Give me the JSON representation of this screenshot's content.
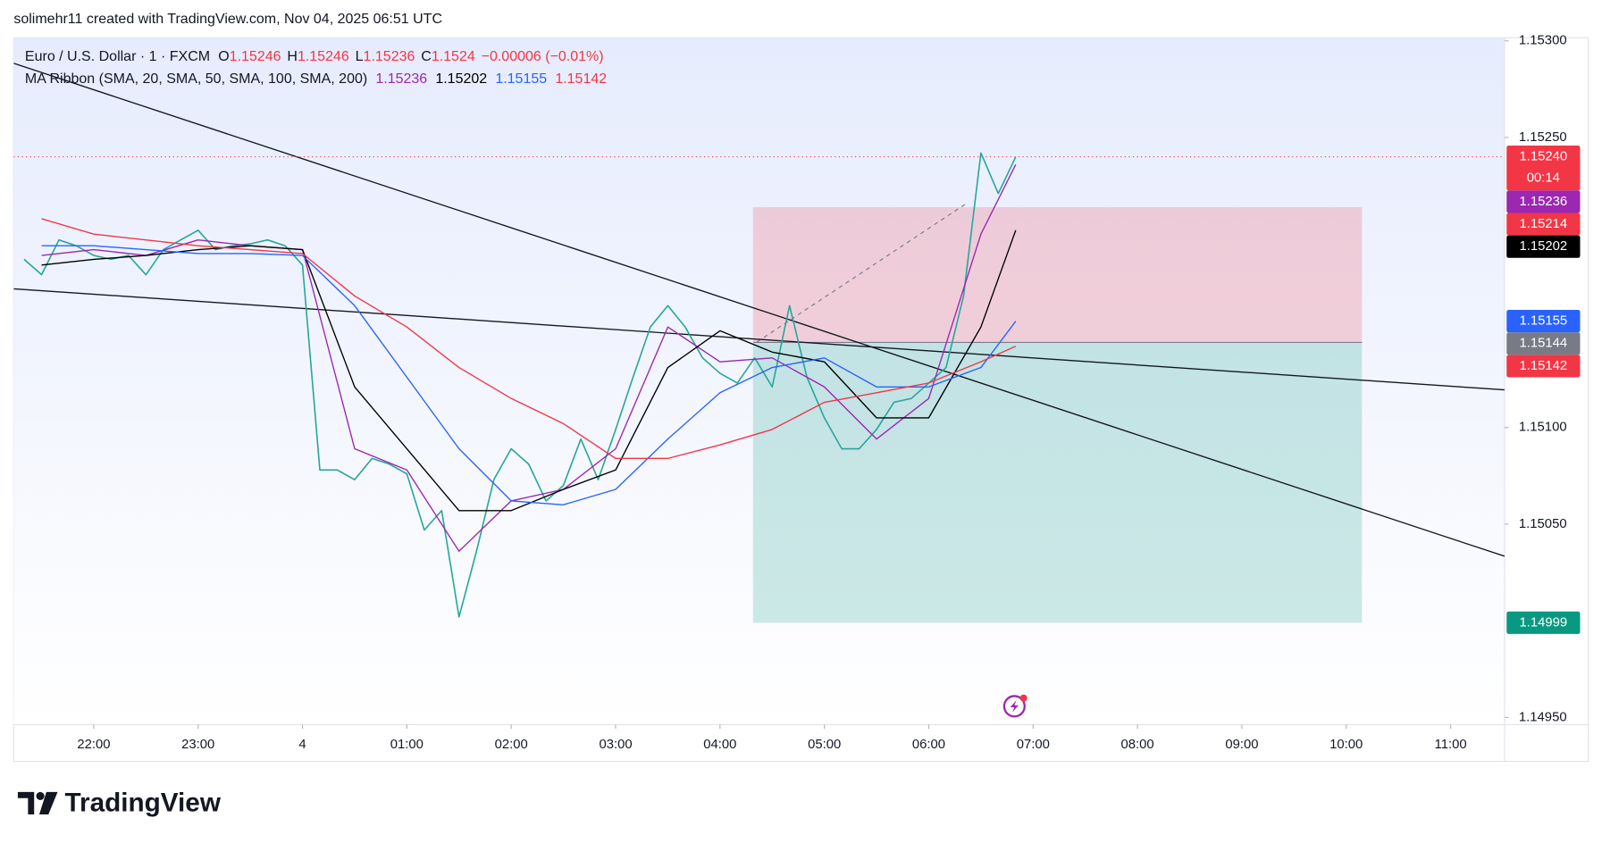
{
  "header": "solimehr11 created with TradingView.com, Nov 04, 2025 06:51 UTC",
  "footer": "TradingView",
  "chart_data": {
    "type": "line",
    "ohlc": [
      {
        "key": "O",
        "value": 1.15246
      },
      {
        "key": "H",
        "value": 1.15246
      },
      {
        "key": "L",
        "value": 1.15236
      },
      {
        "key": "C",
        "value": 1.1524
      }
    ],
    "change": "−0.00006 (−0.01%)",
    "indicator": "MA Ribbon (SMA, 20, SMA, 50, SMA, 100, SMA, 200)",
    "xlim": [
      "21:14",
      "11:31"
    ],
    "xticks": [
      "22:00",
      "23:00",
      {
        "value": "00:00",
        "label": "4"
      },
      "01:00",
      "02:00",
      "03:00",
      "04:00",
      "05:00",
      "06:00",
      "07:00",
      "08:00",
      "09:00",
      "10:00",
      "11:00"
    ],
    "ylim": [
      1.1495,
      1.153
    ],
    "yticks": [
      {
        "value": 1.153,
        "label": "1.15300"
      },
      {
        "value": 1.1525,
        "label": "1.15250"
      },
      {
        "value": 1.151,
        "label": "1.15100"
      },
      {
        "value": 1.1505,
        "label": "1.15050"
      },
      {
        "value": 1.1495,
        "label": "1.14950"
      }
    ],
    "series": [
      {
        "name": "Euro / U.S. Dollar · 1 · FXCM",
        "color": "#26a69a",
        "x": [
          "21:20",
          "21:30",
          "21:40",
          "21:50",
          "22:00",
          "22:10",
          "22:20",
          "22:30",
          "22:40",
          "22:50",
          "23:00",
          "23:10",
          "23:20",
          "23:30",
          "23:40",
          "23:50",
          "00:00",
          "00:10",
          "00:20",
          "00:30",
          "00:40",
          "00:50",
          "01:00",
          "01:10",
          "01:20",
          "01:30",
          "01:40",
          "01:50",
          "02:00",
          "02:10",
          "02:20",
          "02:30",
          "02:40",
          "02:50",
          "03:00",
          "03:10",
          "03:20",
          "03:30",
          "03:40",
          "03:50",
          "04:00",
          "04:10",
          "04:20",
          "04:30",
          "04:40",
          "04:50",
          "05:00",
          "05:10",
          "05:20",
          "05:30",
          "05:40",
          "05:50",
          "06:00",
          "06:10",
          "06:20",
          "06:30",
          "06:40",
          "06:50"
        ],
        "values": [
          1.15187,
          1.15179,
          1.15197,
          1.15194,
          1.15189,
          1.15187,
          1.15189,
          1.15179,
          1.15192,
          1.15197,
          1.15202,
          1.15192,
          1.15194,
          1.15195,
          1.15197,
          1.15194,
          1.15184,
          1.15078,
          1.15078,
          1.15073,
          1.15084,
          1.15081,
          1.15076,
          1.15047,
          1.15057,
          1.15002,
          1.15036,
          1.15073,
          1.15089,
          1.15081,
          1.15062,
          1.1507,
          1.15094,
          1.15073,
          1.15099,
          1.15126,
          1.15152,
          1.15163,
          1.15152,
          1.15136,
          1.15128,
          1.15123,
          1.15136,
          1.15121,
          1.15163,
          1.15126,
          1.15105,
          1.15089,
          1.15089,
          1.15099,
          1.15113,
          1.15115,
          1.15123,
          1.15131,
          1.15168,
          1.15242,
          1.15221,
          1.1524
        ]
      },
      {
        "color": "#9c27b0",
        "x": [
          "21:30",
          "22:00",
          "22:30",
          "23:00",
          "23:30",
          "00:00",
          "00:30",
          "01:00",
          "01:30",
          "02:00",
          "02:30",
          "03:00",
          "03:30",
          "04:00",
          "04:30",
          "05:00",
          "05:30",
          "06:00",
          "06:30",
          "06:50"
        ],
        "values": [
          1.15189,
          1.15192,
          1.15189,
          1.15197,
          1.15194,
          1.15192,
          1.15089,
          1.15078,
          1.15036,
          1.15062,
          1.15068,
          1.15089,
          1.15152,
          1.15134,
          1.15136,
          1.15121,
          1.15094,
          1.15115,
          1.152,
          1.15236
        ]
      },
      {
        "color": "#000000",
        "x": [
          "21:30",
          "22:00",
          "22:30",
          "23:00",
          "23:30",
          "00:00",
          "00:30",
          "01:00",
          "01:30",
          "02:00",
          "02:30",
          "03:00",
          "03:30",
          "04:00",
          "04:30",
          "05:00",
          "05:30",
          "06:00",
          "06:30",
          "06:50"
        ],
        "values": [
          1.15184,
          1.15187,
          1.15189,
          1.15192,
          1.15194,
          1.15192,
          1.15121,
          1.15089,
          1.15057,
          1.15057,
          1.15068,
          1.15078,
          1.15131,
          1.1515,
          1.15139,
          1.15134,
          1.15105,
          1.15105,
          1.15152,
          1.15202
        ]
      },
      {
        "color": "#2962ff",
        "x": [
          "21:30",
          "22:00",
          "22:30",
          "23:00",
          "23:30",
          "00:00",
          "00:30",
          "01:00",
          "01:30",
          "02:00",
          "02:30",
          "03:00",
          "03:30",
          "04:00",
          "04:30",
          "05:00",
          "05:30",
          "06:00",
          "06:30",
          "06:50"
        ],
        "values": [
          1.15194,
          1.15194,
          1.15192,
          1.1519,
          1.1519,
          1.15189,
          1.15163,
          1.15126,
          1.15089,
          1.15062,
          1.1506,
          1.15068,
          1.15094,
          1.15118,
          1.15131,
          1.15136,
          1.15121,
          1.15121,
          1.15131,
          1.15155
        ]
      },
      {
        "color": "#f23645",
        "x": [
          "21:30",
          "22:00",
          "22:30",
          "23:00",
          "23:30",
          "00:00",
          "00:30",
          "01:00",
          "01:30",
          "02:00",
          "02:30",
          "03:00",
          "03:30",
          "04:00",
          "04:30",
          "05:00",
          "05:30",
          "06:00",
          "06:30",
          "06:50"
        ],
        "values": [
          1.15208,
          1.152,
          1.15197,
          1.15194,
          1.15192,
          1.1519,
          1.15168,
          1.15152,
          1.15131,
          1.15115,
          1.15102,
          1.15084,
          1.15084,
          1.15091,
          1.15099,
          1.15113,
          1.15118,
          1.15123,
          1.15134,
          1.15142
        ]
      }
    ],
    "position": {
      "start": "04:19",
      "end": "10:09",
      "entry": 1.15144,
      "stop": 1.15214,
      "target": 1.14999
    },
    "countdown": "00:14",
    "price_labels": [
      {
        "value": 1.1524,
        "label": "1.15240",
        "color": "#f23645"
      },
      {
        "value": 1.15236,
        "label": "1.15236",
        "color": "#9c27b0"
      },
      {
        "value": 1.15214,
        "label": "1.15214",
        "color": "#f23645"
      },
      {
        "value": 1.15202,
        "label": "1.15202",
        "color": "#000000"
      },
      {
        "value": 1.15155,
        "label": "1.15155",
        "color": "#2962ff"
      },
      {
        "value": 1.15144,
        "label": "1.15144",
        "color": "#787b86"
      },
      {
        "value": 1.15142,
        "label": "1.15142",
        "color": "#f23645"
      },
      {
        "value": 1.14999,
        "label": "1.14999",
        "color": "#089981"
      }
    ]
  }
}
